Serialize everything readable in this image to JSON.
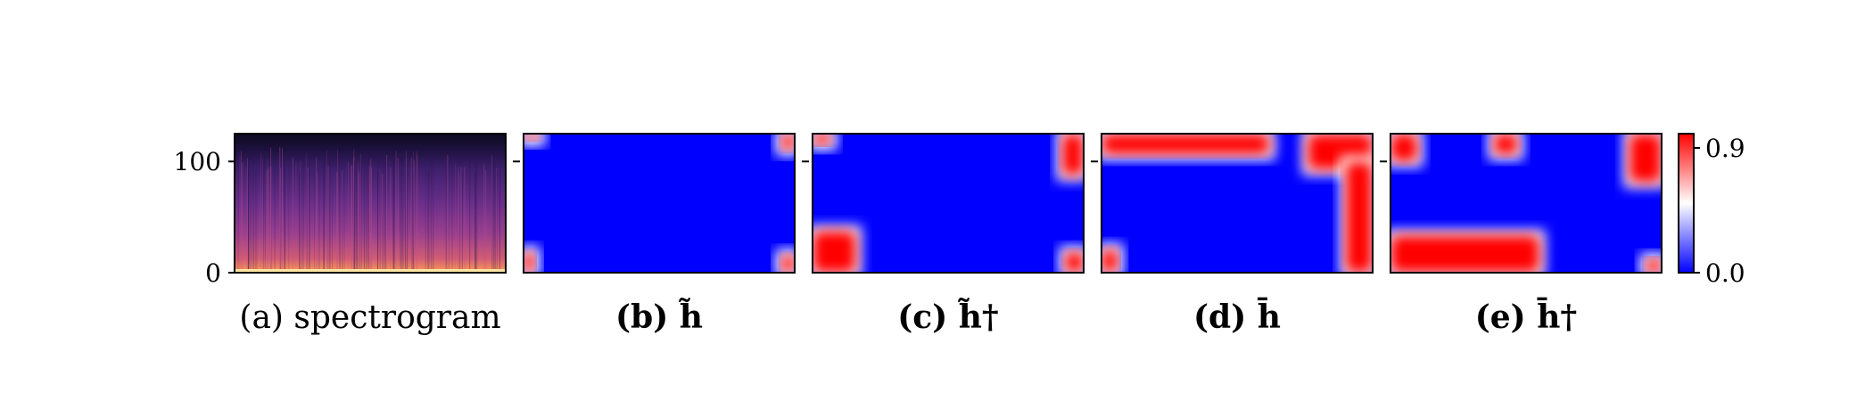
{
  "chart_data": [
    {
      "type": "heatmap",
      "name": "spectrogram",
      "caption": "(a) spectrogram",
      "y_ticks": [
        0,
        100
      ],
      "ylim": [
        0,
        125
      ]
    },
    {
      "type": "heatmap",
      "caption": "(b) h̃",
      "symbol": "h̃",
      "hot_regions": [
        [
          0.0,
          0.95,
          0.06,
          1.0
        ],
        [
          0.95,
          0.88,
          1.0,
          1.0
        ],
        [
          0.0,
          0.0,
          0.04,
          0.15
        ],
        [
          0.95,
          0.0,
          1.0,
          0.13
        ]
      ]
    },
    {
      "type": "heatmap",
      "caption": "(c) h̃†",
      "symbol": "h̃†",
      "hot_regions": [
        [
          0.0,
          0.92,
          0.07,
          1.0
        ],
        [
          0.92,
          0.7,
          1.0,
          1.0
        ],
        [
          0.0,
          0.0,
          0.16,
          0.3
        ],
        [
          0.93,
          0.0,
          1.0,
          0.15
        ]
      ]
    },
    {
      "type": "heatmap",
      "caption": "(d) h̄",
      "symbol": "h̄",
      "hot_regions": [
        [
          0.0,
          0.85,
          0.62,
          1.0
        ],
        [
          0.76,
          0.74,
          1.0,
          1.0
        ],
        [
          0.9,
          0.0,
          1.0,
          0.8
        ],
        [
          0.0,
          0.0,
          0.06,
          0.17
        ]
      ]
    },
    {
      "type": "heatmap",
      "caption": "(e) h̄†",
      "symbol": "h̄†",
      "hot_regions": [
        [
          0.0,
          0.8,
          0.1,
          1.0
        ],
        [
          0.38,
          0.85,
          0.47,
          1.0
        ],
        [
          0.88,
          0.65,
          1.0,
          1.0
        ],
        [
          0.0,
          0.0,
          0.55,
          0.27
        ],
        [
          0.94,
          0.0,
          1.0,
          0.1
        ]
      ]
    }
  ],
  "colorbar": {
    "min_label": "0.0",
    "max_label": "0.9",
    "colors": [
      "#0000ff",
      "#ffffff",
      "#ff0000"
    ]
  }
}
